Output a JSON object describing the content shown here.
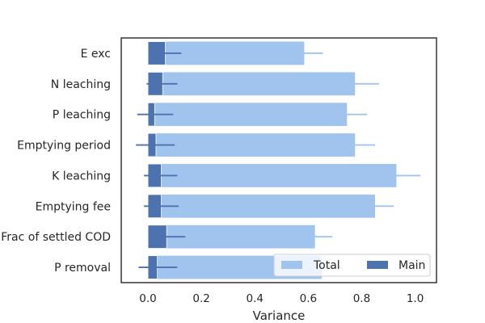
{
  "chart_data": {
    "type": "bar",
    "orientation": "horizontal",
    "categories": [
      "E exc",
      "N leaching",
      "P leaching",
      "Emptying period",
      "K leaching",
      "Emptying fee",
      "Frac of settled COD",
      "P removal"
    ],
    "series": [
      {
        "name": "Total",
        "color": "#a1c4ee",
        "values": [
          0.585,
          0.775,
          0.745,
          0.775,
          0.93,
          0.85,
          0.625,
          0.65
        ],
        "err_low": [
          0.505,
          0.715,
          0.695,
          0.715,
          0.845,
          0.785,
          0.555,
          0.585
        ],
        "err_high": [
          0.655,
          0.865,
          0.82,
          0.85,
          1.02,
          0.92,
          0.69,
          0.73
        ]
      },
      {
        "name": "Main",
        "color": "#4c72b0",
        "values": [
          0.065,
          0.055,
          0.025,
          0.03,
          0.05,
          0.05,
          0.07,
          0.035
        ],
        "err_low": [
          0.005,
          -0.005,
          -0.04,
          -0.045,
          -0.015,
          -0.015,
          0.005,
          -0.035
        ],
        "err_high": [
          0.125,
          0.11,
          0.095,
          0.1,
          0.11,
          0.115,
          0.14,
          0.11
        ]
      }
    ],
    "xlabel": "Variance",
    "ylabel": "",
    "xlim": [
      -0.1,
      1.08
    ],
    "xticks": [
      0.0,
      0.2,
      0.4,
      0.6,
      0.8,
      1.0
    ],
    "xtick_labels": [
      "0.0",
      "0.2",
      "0.4",
      "0.6",
      "0.8",
      "1.0"
    ],
    "grid": false,
    "legend": "lower-right"
  }
}
